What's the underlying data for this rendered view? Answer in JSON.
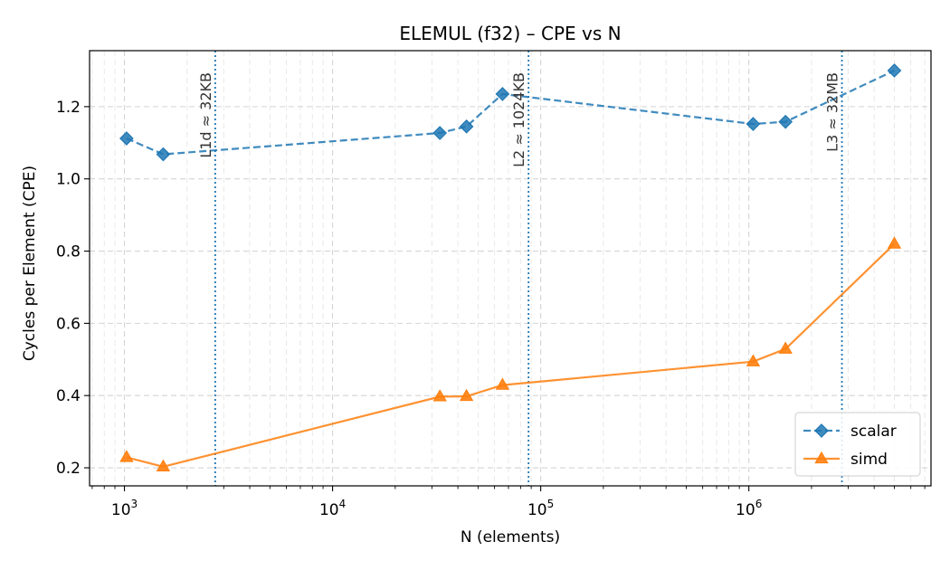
{
  "chart_data": {
    "type": "line",
    "title": "ELEMUL (f32) – CPE vs N",
    "xlabel": "N (elements)",
    "ylabel": "Cycles per Element (CPE)",
    "xscale": "log",
    "xlim": [
      680,
      7500000
    ],
    "ylim": [
      0.15,
      1.355
    ],
    "grid": true,
    "legend_position": "bottom-right",
    "x_ticks": [
      {
        "value": 1000,
        "base": "10",
        "exp": "3"
      },
      {
        "value": 10000,
        "base": "10",
        "exp": "4"
      },
      {
        "value": 100000,
        "base": "10",
        "exp": "5"
      },
      {
        "value": 1000000,
        "base": "10",
        "exp": "6"
      }
    ],
    "y_ticks": [
      {
        "value": 0.2,
        "label": "0.2"
      },
      {
        "value": 0.4,
        "label": "0.4"
      },
      {
        "value": 0.6,
        "label": "0.6"
      },
      {
        "value": 0.8,
        "label": "0.8"
      },
      {
        "value": 1.0,
        "label": "1.0"
      },
      {
        "value": 1.2,
        "label": "1.2"
      }
    ],
    "series": [
      {
        "name": "scalar",
        "color": "#1f77b4",
        "marker": "diamond",
        "linestyle": "dashed",
        "x": [
          1024,
          1536,
          32768,
          44000,
          65536,
          1048576,
          1500000,
          5000000
        ],
        "y": [
          1.112,
          1.068,
          1.127,
          1.145,
          1.235,
          1.152,
          1.158,
          1.3
        ]
      },
      {
        "name": "simd",
        "color": "#ff7f0e",
        "marker": "triangle",
        "linestyle": "solid",
        "x": [
          1024,
          1536,
          32768,
          44000,
          65536,
          1048576,
          1500000,
          5000000
        ],
        "y": [
          0.229,
          0.203,
          0.397,
          0.398,
          0.429,
          0.494,
          0.529,
          0.82
        ]
      }
    ],
    "annotations": [
      {
        "x": 2730,
        "label": "L1d ≈ 32KB"
      },
      {
        "x": 87400,
        "label": "L2  ≈ 1024KB"
      },
      {
        "x": 2800000,
        "label": "L3  ≈ 32MB"
      }
    ],
    "annotation_color": "#1f77b4"
  }
}
